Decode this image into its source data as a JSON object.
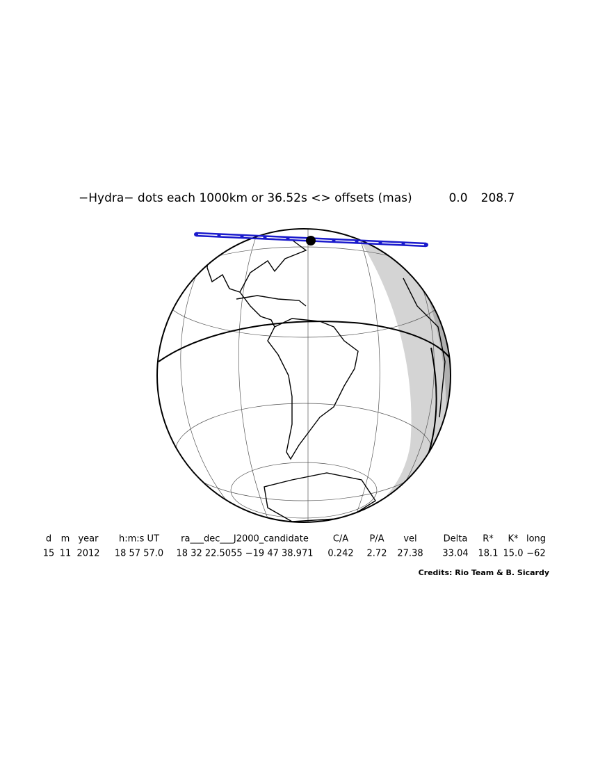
{
  "header": {
    "title": "−Hydra− dots each 1000km or 36.52s <> offsets (mas)",
    "offset_x": "0.0",
    "offset_y": "208.7"
  },
  "table": {
    "columns": [
      "d",
      "m",
      "year",
      "h:m:s UT",
      "ra___dec___J2000_candidate",
      "C/A",
      "P/A",
      "vel",
      "Delta",
      "R*",
      "K*",
      "long"
    ],
    "values": [
      "15",
      "11",
      "2012",
      "18 57 57.0",
      "18 32 22.5055 −19 47 38.971",
      "0.242",
      "2.72",
      "27.38",
      "33.04",
      "18.1",
      "15.0",
      "−62"
    ]
  },
  "credits": "Credits: Rio Team & B. Sicardy"
}
